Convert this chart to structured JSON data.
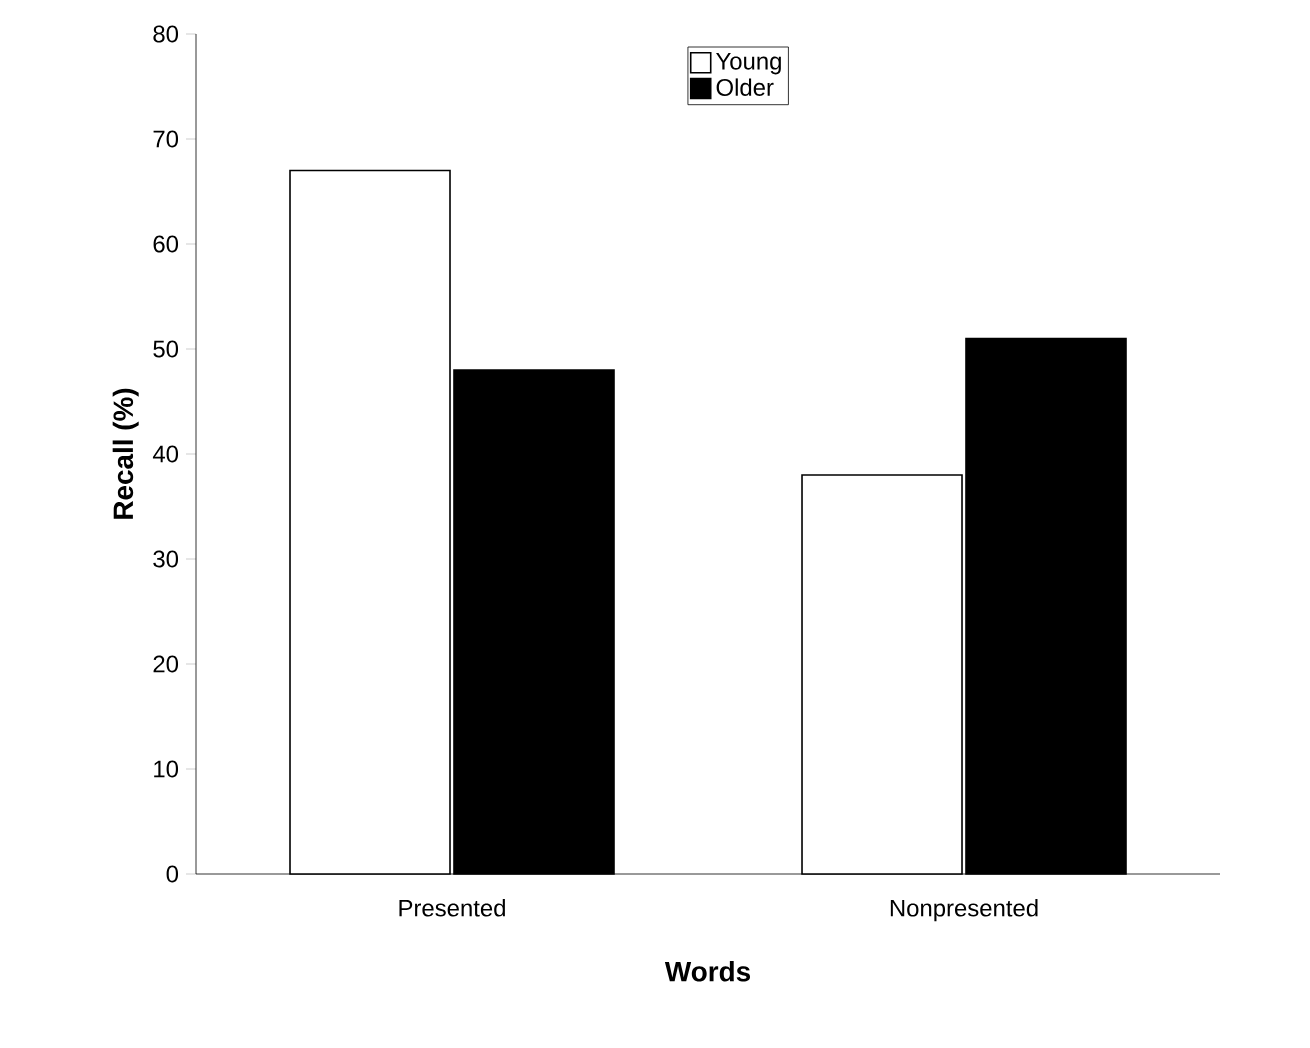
{
  "chart_data": {
    "type": "bar",
    "xlabel": "Words",
    "ylabel": "Recall (%)",
    "categories": [
      "Presented",
      "Nonpresented"
    ],
    "series": [
      {
        "name": "Young",
        "color": "#ffffff",
        "values": [
          67,
          38
        ]
      },
      {
        "name": "Older",
        "color": "#000000",
        "values": [
          48,
          51
        ]
      }
    ],
    "ylim": [
      0,
      80
    ],
    "yticks": [
      0,
      10,
      20,
      30,
      40,
      50,
      60,
      70,
      80
    ],
    "grid": false,
    "legend": "top"
  }
}
